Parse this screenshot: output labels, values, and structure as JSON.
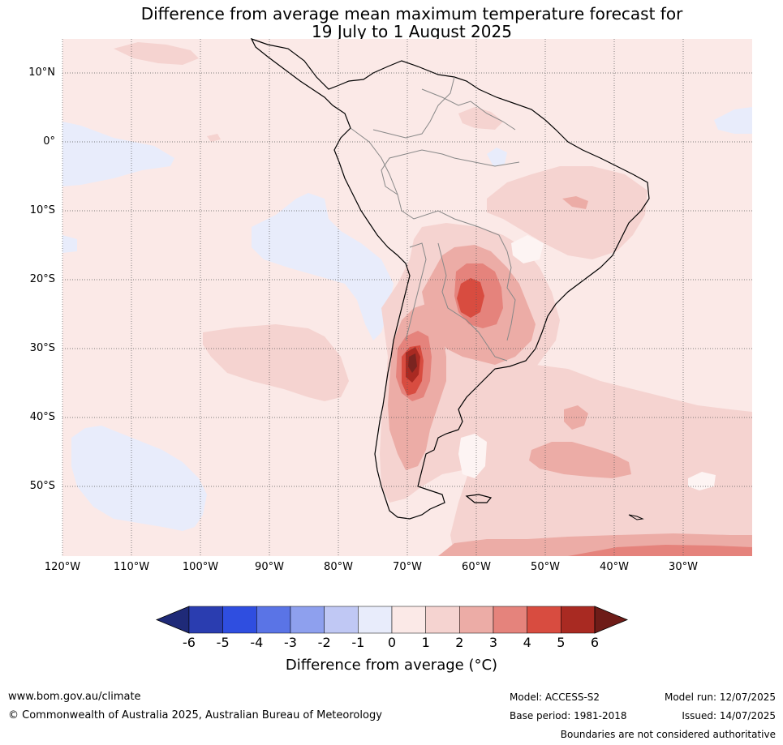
{
  "title": {
    "line1": "Difference from average mean maximum temperature forecast for",
    "line2": "19 July to 1 August 2025"
  },
  "map": {
    "lat_labels": [
      "10°N",
      "0°",
      "10°S",
      "20°S",
      "30°S",
      "40°S",
      "50°S"
    ],
    "lon_labels": [
      "120°W",
      "110°W",
      "100°W",
      "90°W",
      "80°W",
      "70°W",
      "60°W",
      "50°W",
      "40°W",
      "30°W"
    ],
    "extent": {
      "lon_min": -120,
      "lon_max": -20,
      "lat_min": -60,
      "lat_max": 15
    },
    "background_anomaly_color": "#fbe9e7"
  },
  "colorbar": {
    "ticks": [
      "-6",
      "-5",
      "-4",
      "-3",
      "-2",
      "-1",
      "0",
      "1",
      "2",
      "3",
      "4",
      "5",
      "6"
    ],
    "colors": [
      "#1f2a78",
      "#2a3db0",
      "#2f4ee0",
      "#5a74e6",
      "#8ea0ee",
      "#c0c8f4",
      "#e8ecfb",
      "#fbe9e7",
      "#f5d3d0",
      "#ecaca6",
      "#e5837c",
      "#d84c40",
      "#a92a22",
      "#6e1c18"
    ],
    "title": "Difference from average (°C)"
  },
  "footer": {
    "website": "www.bom.gov.au/climate",
    "copyright": "© Commonwealth of Australia 2025, Australian Bureau of Meteorology",
    "model": "Model: ACCESS-S2",
    "base_period": "Base period: 1981-2018",
    "model_run": "Model run: 12/07/2025",
    "issued": "Issued: 14/07/2025",
    "disclaimer": "Boundaries are not considered authoritative"
  }
}
